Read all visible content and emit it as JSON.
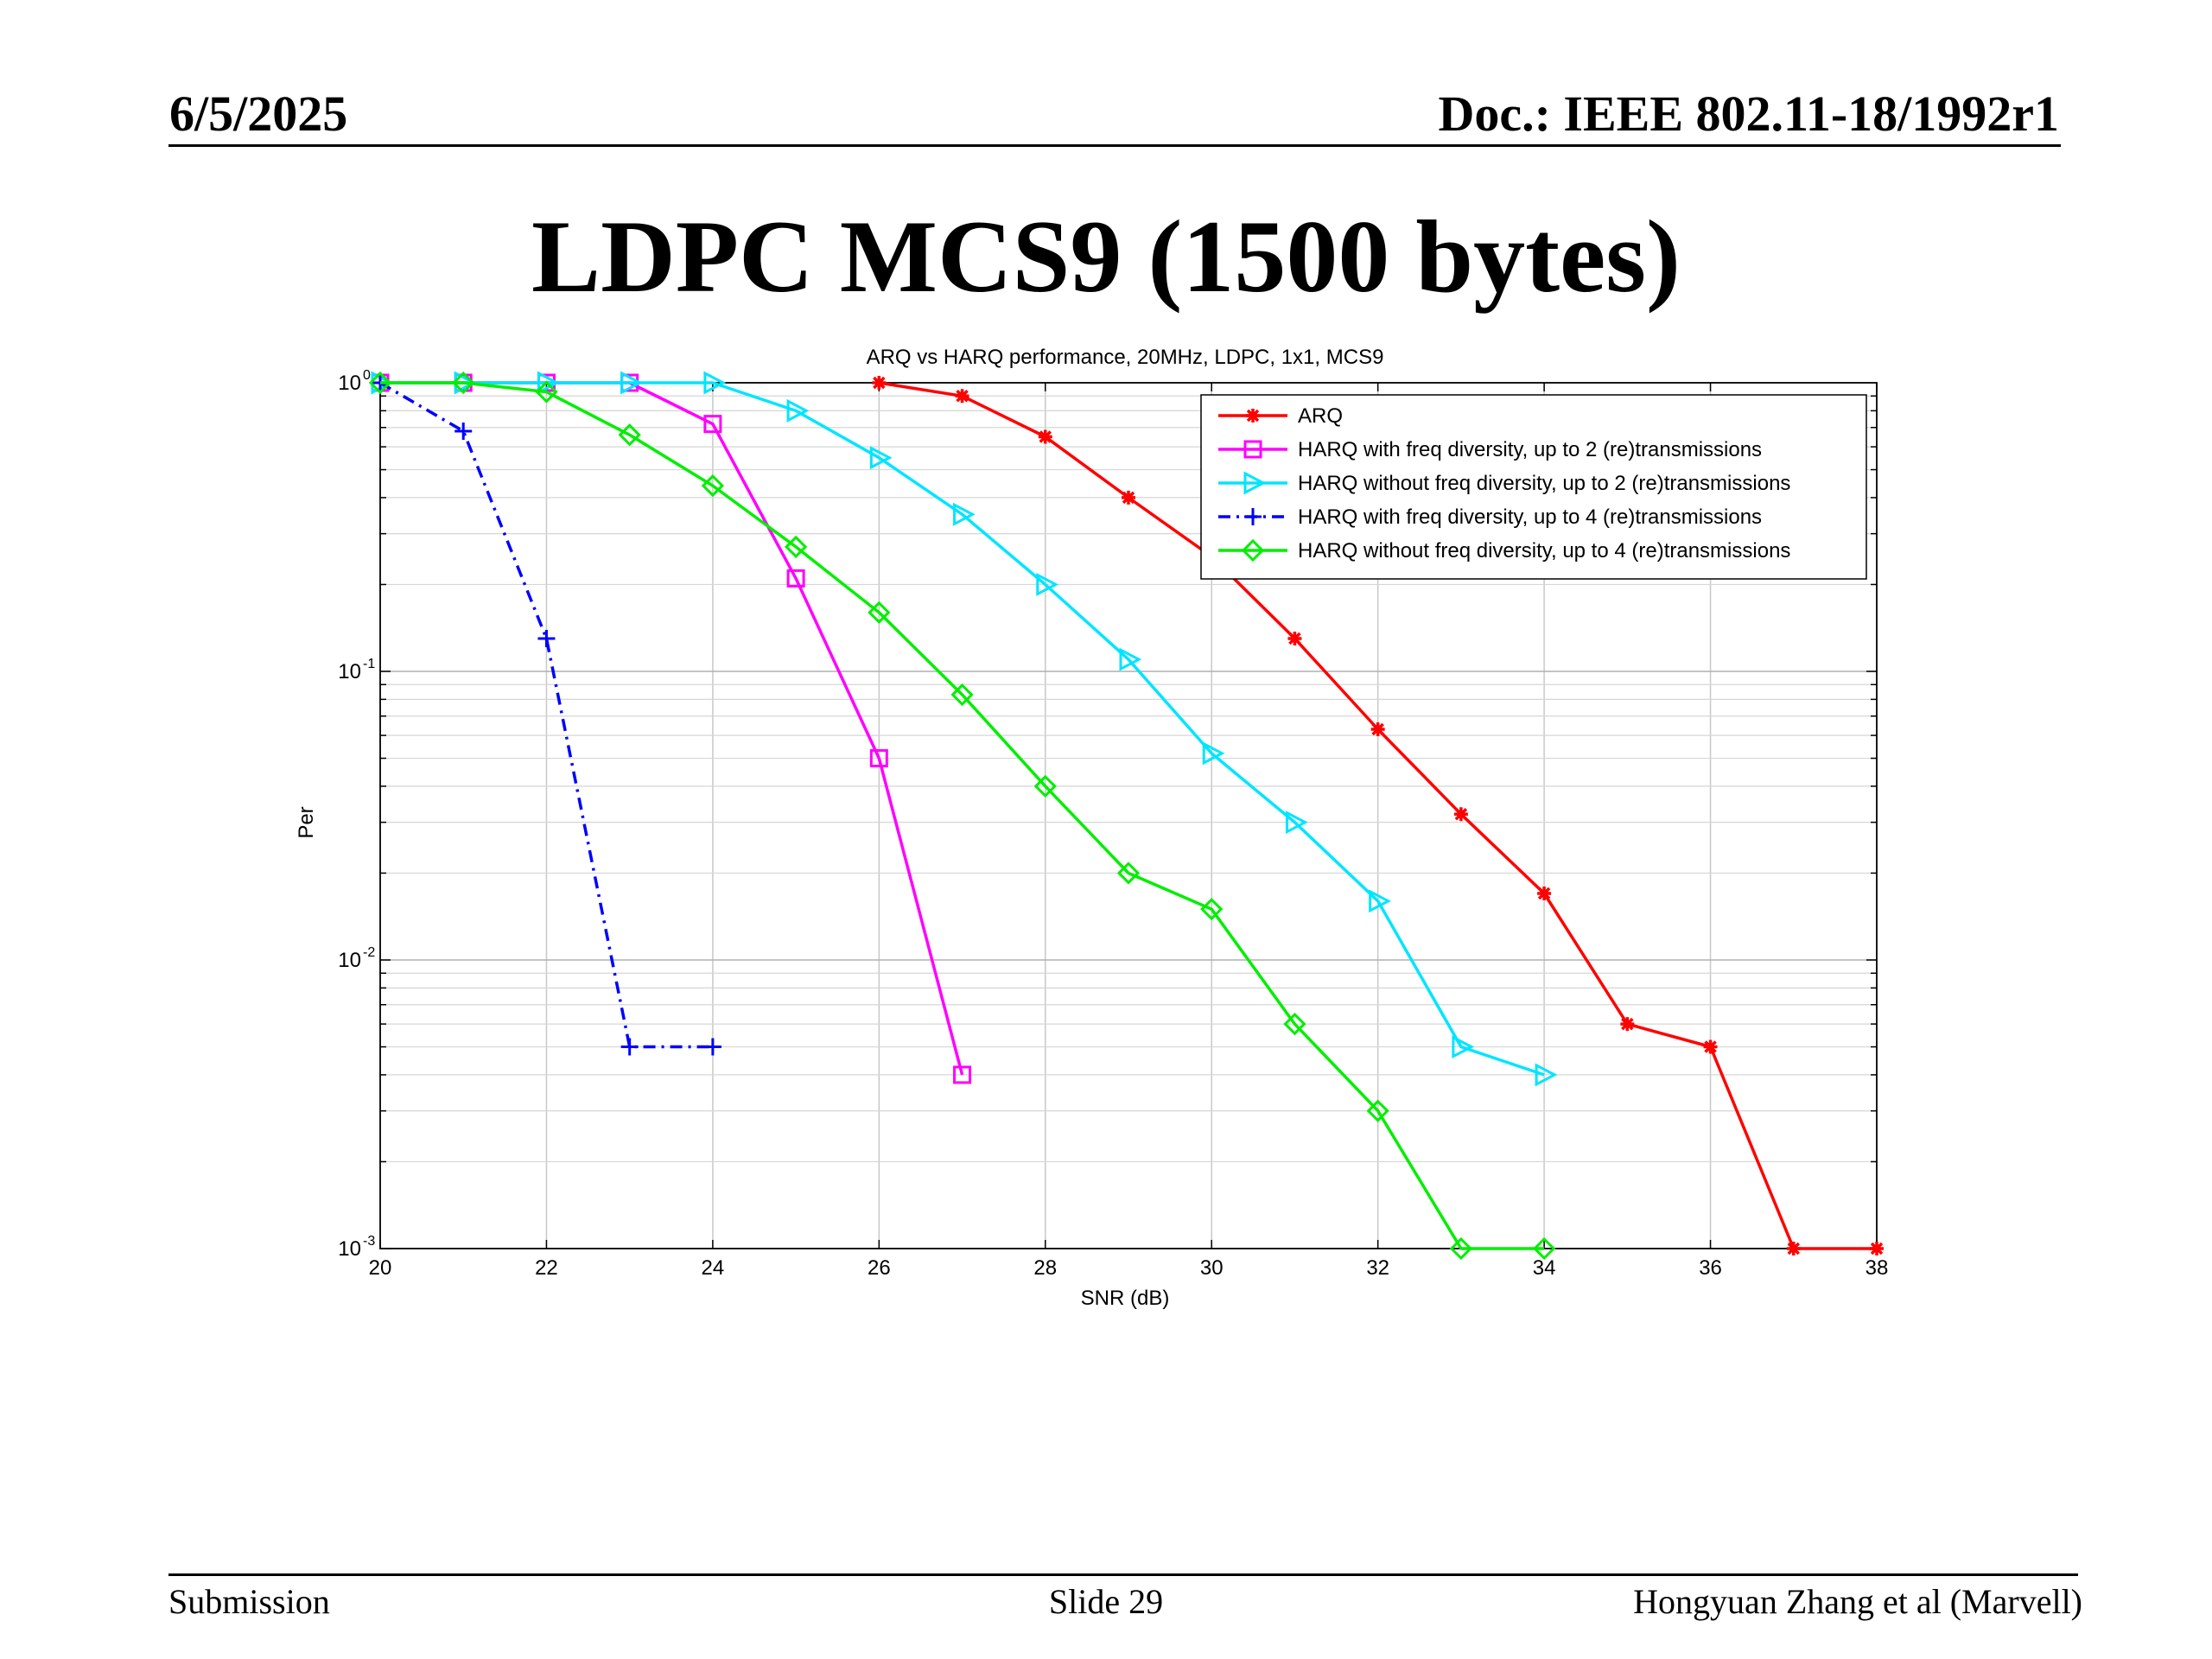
{
  "header": {
    "date": "6/5/2025",
    "doc": "Doc.: IEEE 802.11-18/1992r1"
  },
  "slide_title": "LDPC MCS9 (1500 bytes)",
  "footer": {
    "left": "Submission",
    "center": "Slide 29",
    "right": "Hongyuan Zhang et al (Marvell)"
  },
  "chart_data": {
    "type": "line",
    "title": "ARQ vs HARQ performance, 20MHz, LDPC, 1x1, MCS9",
    "xlabel": "SNR (dB)",
    "ylabel": "Per",
    "xlim": [
      20,
      38
    ],
    "ylim": [
      0.001,
      1
    ],
    "yscale": "log",
    "grid": true,
    "legend_position": "top-right",
    "x_ticks": [
      "20",
      "22",
      "24",
      "26",
      "28",
      "30",
      "32",
      "34",
      "36",
      "38"
    ],
    "y_ticks": [
      {
        "base": "10",
        "exp": "0"
      },
      {
        "base": "10",
        "exp": "-1"
      },
      {
        "base": "10",
        "exp": "-2"
      },
      {
        "base": "10",
        "exp": "-3"
      }
    ],
    "series": [
      {
        "name": "ARQ",
        "color": "#ff0000",
        "marker": "star",
        "dash": "solid",
        "x": [
          26,
          27,
          28,
          29,
          30,
          31,
          32,
          33,
          34,
          35,
          36,
          37,
          38
        ],
        "y": [
          1.0,
          0.9,
          0.65,
          0.4,
          0.25,
          0.13,
          0.063,
          0.032,
          0.017,
          0.006,
          0.005,
          0.001,
          0.001
        ]
      },
      {
        "name": "HARQ with freq diversity, up to 2 (re)transmissions",
        "color": "#ff00ff",
        "marker": "square",
        "dash": "solid",
        "x": [
          20,
          21,
          22,
          23,
          24,
          25,
          26,
          27
        ],
        "y": [
          1.0,
          1.0,
          1.0,
          1.0,
          0.72,
          0.21,
          0.05,
          0.004
        ]
      },
      {
        "name": "HARQ without freq diversity, up to 2 (re)transmissions",
        "color": "#00e5ff",
        "marker": "triangle-right",
        "dash": "solid",
        "x": [
          20,
          21,
          22,
          23,
          24,
          25,
          26,
          27,
          28,
          29,
          30,
          31,
          32,
          33,
          34
        ],
        "y": [
          1.0,
          1.0,
          1.0,
          1.0,
          1.0,
          0.8,
          0.55,
          0.35,
          0.2,
          0.11,
          0.052,
          0.03,
          0.016,
          0.005,
          0.004
        ]
      },
      {
        "name": "HARQ with freq diversity, up to 4 (re)transmissions",
        "color": "#0000ff",
        "marker": "plus",
        "dash": "dashdot",
        "x": [
          20,
          21,
          22,
          23,
          24
        ],
        "y": [
          1.0,
          0.68,
          0.13,
          0.005,
          0.005
        ]
      },
      {
        "name": "HARQ without freq diversity, up to 4 (re)transmissions",
        "color": "#00ee00",
        "marker": "diamond",
        "dash": "solid",
        "x": [
          20,
          21,
          22,
          23,
          24,
          25,
          26,
          27,
          28,
          29,
          30,
          31,
          32,
          33,
          34
        ],
        "y": [
          1.0,
          1.0,
          0.93,
          0.66,
          0.44,
          0.27,
          0.16,
          0.083,
          0.04,
          0.02,
          0.015,
          0.006,
          0.003,
          0.001,
          0.001
        ]
      }
    ]
  }
}
